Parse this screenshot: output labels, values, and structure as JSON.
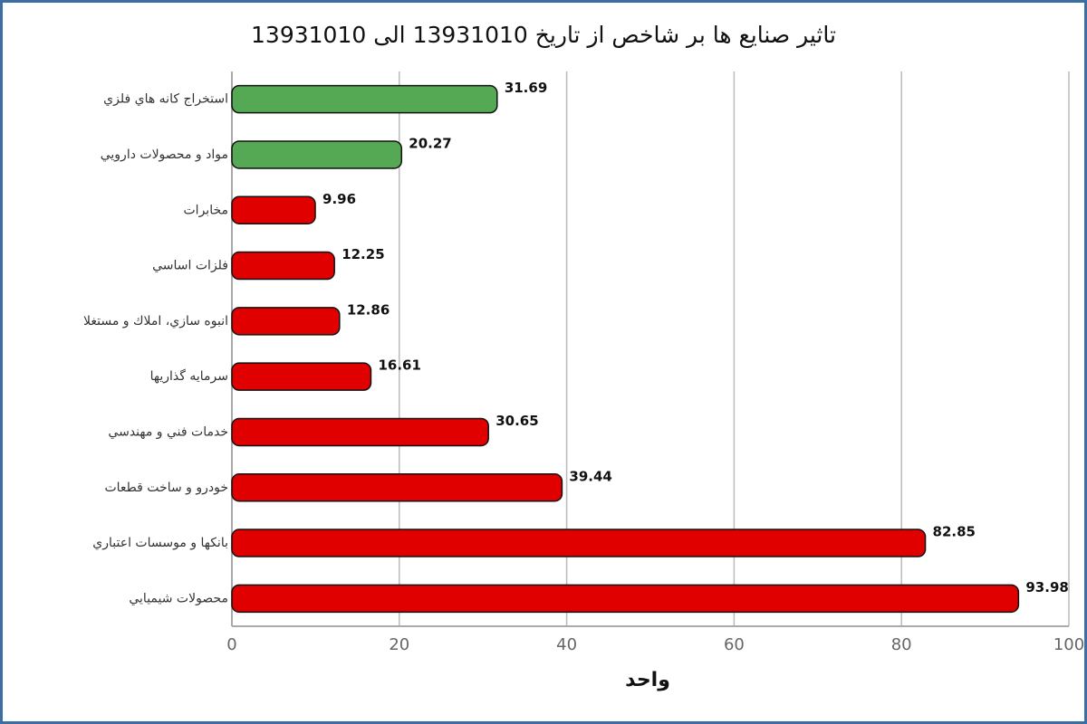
{
  "chart_data": {
    "type": "bar",
    "orientation": "horizontal",
    "title": "تاثير صنايع ها بر شاخص از تاريخ 13931010 الی 13931010",
    "x_label": "واحد",
    "categories": [
      "استخراج كانه هاي فلزي",
      "مواد و محصولات دارويي",
      "مخابرات",
      "فلزات اساسي",
      "انبوه سازي، املاك و مستغلا",
      "سرمايه گذاريها",
      "خدمات فني و مهندسي",
      "خودرو و ساخت قطعات",
      "بانكها و موسسات اعتباري",
      "محصولات شيميايي"
    ],
    "values": [
      31.69,
      20.27,
      9.96,
      12.25,
      12.86,
      16.61,
      30.65,
      39.44,
      82.85,
      93.98
    ],
    "colors": [
      "#55a955",
      "#55a955",
      "#e00000",
      "#e00000",
      "#e00000",
      "#e00000",
      "#e00000",
      "#e00000",
      "#e00000",
      "#e00000"
    ],
    "xlim": [
      0,
      100
    ],
    "xticks": [
      0,
      20,
      40,
      60,
      80,
      100
    ],
    "grid": true
  }
}
